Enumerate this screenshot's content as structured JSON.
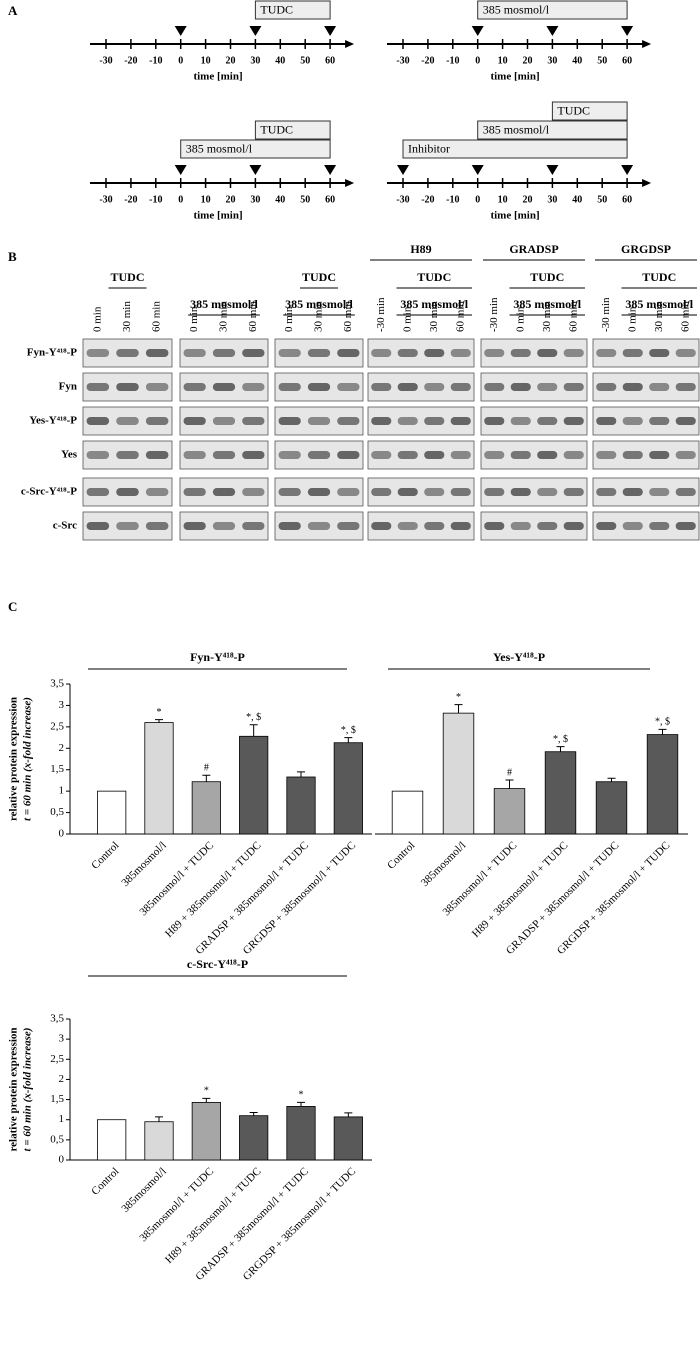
{
  "panel_a": {
    "label": "A",
    "timelines": [
      {
        "ticks": [
          -30,
          -20,
          -10,
          0,
          10,
          20,
          30,
          40,
          50,
          60
        ],
        "axis_label": "time [min]",
        "markers": [
          0,
          30,
          60
        ],
        "treatments": [
          {
            "label": "TUDC",
            "start": 30,
            "end": 60
          }
        ]
      },
      {
        "ticks": [
          -30,
          -20,
          -10,
          0,
          10,
          20,
          30,
          40,
          50,
          60
        ],
        "axis_label": "time [min]",
        "markers": [
          0,
          30,
          60
        ],
        "treatments": [
          {
            "label": "385 mosmol/l",
            "start": 0,
            "end": 60
          }
        ]
      },
      {
        "ticks": [
          -30,
          -20,
          -10,
          0,
          10,
          20,
          30,
          40,
          50,
          60
        ],
        "axis_label": "time [min]",
        "markers": [
          0,
          30,
          60
        ],
        "treatments": [
          {
            "label": "385 mosmol/l",
            "start": 0,
            "end": 60
          },
          {
            "label": "TUDC",
            "start": 30,
            "end": 60
          }
        ]
      },
      {
        "ticks": [
          -30,
          -20,
          -10,
          0,
          10,
          20,
          30,
          40,
          50,
          60
        ],
        "axis_label": "time [min]",
        "markers": [
          -30,
          0,
          30,
          60
        ],
        "treatments": [
          {
            "label": "Inhibitor",
            "start": -30,
            "end": 60
          },
          {
            "label": "385 mosmol/l",
            "start": 0,
            "end": 60
          },
          {
            "label": "TUDC",
            "start": 30,
            "end": 60
          }
        ]
      }
    ]
  },
  "panel_b": {
    "label": "B",
    "rows": [
      "Fyn-Y⁴¹⁸-P",
      "Fyn",
      "Yes-Y⁴¹⁸-P",
      "Yes",
      "c-Src-Y⁴¹⁸-P",
      "c-Src"
    ],
    "groups": [
      {
        "treatment": "TUDC",
        "lanes": [
          "0 min",
          "30 min",
          "60 min"
        ]
      },
      {
        "osmolarity": "385 mosmol/l",
        "lanes": [
          "0 min",
          "30 min",
          "60 min"
        ]
      },
      {
        "treatment": "TUDC",
        "osmolarity": "385 mosmol/l",
        "lanes": [
          "0 min",
          "30 min",
          "60 min"
        ]
      },
      {
        "inhibitor": "H89",
        "treatment": "TUDC",
        "osmolarity": "385 mosmol/l",
        "lanes": [
          "-30 min",
          "0 min",
          "30 min",
          "60 min"
        ]
      },
      {
        "inhibitor": "GRADSP",
        "treatment": "TUDC",
        "osmolarity": "385 mosmol/l",
        "lanes": [
          "-30 min",
          "0 min",
          "30 min",
          "60 min"
        ]
      },
      {
        "inhibitor": "GRGDSP",
        "treatment": "TUDC",
        "osmolarity": "385 mosmol/l",
        "lanes": [
          "-30 min",
          "0 min",
          "30 min",
          "60 min"
        ]
      }
    ]
  },
  "panel_c": {
    "label": "C"
  },
  "chart_data": [
    {
      "type": "bar",
      "title": "Fyn-Y⁴¹⁸-P",
      "ylabel": [
        "relative protein expression",
        "t = 60 min (x-fold increase)"
      ],
      "categories": [
        "Control",
        "385mosmol/l",
        "385mosmol/l + TUDC",
        "H89 + 385mosmol/l + TUDC",
        "GRADSP + 385mosmol/l + TUDC",
        "GRGDSP + 385mosmol/l + TUDC"
      ],
      "values": [
        1,
        2.6,
        1.22,
        2.28,
        1.33,
        2.13
      ],
      "errors": [
        0,
        0.07,
        0.15,
        0.27,
        0.12,
        0.12
      ],
      "annotations": [
        null,
        "*",
        "#",
        "*, $",
        null,
        "*, $"
      ],
      "colors": [
        "#ffffff",
        "#d9d9d9",
        "#a6a6a6",
        "#595959",
        "#595959",
        "#595959"
      ],
      "ylim": [
        0,
        3.5
      ],
      "yticks": [
        0,
        {
          "value": 0.5,
          "label": "0,5"
        },
        1,
        {
          "value": 1.5,
          "label": "1,5"
        },
        2,
        {
          "value": 2.5,
          "label": "2,5"
        },
        3,
        {
          "value": 3.5,
          "label": "3,5"
        }
      ]
    },
    {
      "type": "bar",
      "title": "Yes-Y⁴¹⁸-P",
      "categories": [
        "Control",
        "385mosmol/l",
        "385mosmol/l + TUDC",
        "H89 + 385mosmol/l + TUDC",
        "GRADSP + 385mosmol/l + TUDC",
        "GRGDSP + 385mosmol/l + TUDC"
      ],
      "values": [
        1,
        2.82,
        1.06,
        1.92,
        1.22,
        2.32
      ],
      "errors": [
        0,
        0.2,
        0.2,
        0.12,
        0.08,
        0.12
      ],
      "annotations": [
        null,
        "*",
        "#",
        "*, $",
        null,
        "*, $"
      ],
      "colors": [
        "#ffffff",
        "#d9d9d9",
        "#a6a6a6",
        "#595959",
        "#595959",
        "#595959"
      ],
      "ylim": [
        0,
        3.5
      ]
    },
    {
      "type": "bar",
      "title": "c-Src-Y⁴¹⁸-P",
      "ylabel": [
        "relative protein expression",
        "t = 60 min (x-fold increase)"
      ],
      "categories": [
        "Control",
        "385mosmol/l",
        "385mosmol/l + TUDC",
        "H89 + 385mosmol/l + TUDC",
        "GRADSP + 385mosmol/l + TUDC",
        "GRGDSP + 385mosmol/l + TUDC"
      ],
      "values": [
        1,
        0.95,
        1.43,
        1.1,
        1.33,
        1.07
      ],
      "errors": [
        0,
        0.12,
        0.1,
        0.08,
        0.1,
        0.1
      ],
      "annotations": [
        null,
        null,
        "*",
        null,
        "*",
        null
      ],
      "colors": [
        "#ffffff",
        "#d9d9d9",
        "#a6a6a6",
        "#595959",
        "#595959",
        "#595959"
      ],
      "ylim": [
        0,
        3.5
      ],
      "yticks": [
        0,
        {
          "value": 0.5,
          "label": "0,5"
        },
        1,
        {
          "value": 1.5,
          "label": "1,5"
        },
        2,
        {
          "value": 2.5,
          "label": "2,5"
        },
        3,
        {
          "value": 3.5,
          "label": "3,5"
        }
      ]
    }
  ]
}
